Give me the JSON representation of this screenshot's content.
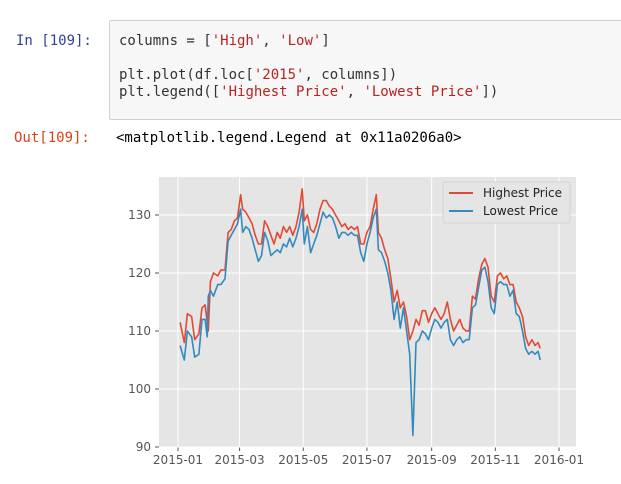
{
  "cell_in": {
    "prompt": "In [109]:",
    "lines": [
      {
        "parts": [
          {
            "t": "columns = ["
          },
          {
            "t": "'High'",
            "s": 1
          },
          {
            "t": ", "
          },
          {
            "t": "'Low'",
            "s": 1
          },
          {
            "t": "]"
          }
        ]
      },
      {
        "parts": [
          {
            "t": "plt.plot(df.loc["
          },
          {
            "t": "'2015'",
            "s": 1
          },
          {
            "t": ", columns])"
          }
        ]
      },
      {
        "parts": [
          {
            "t": "plt.legend(["
          },
          {
            "t": "'Highest Price'",
            "s": 1
          },
          {
            "t": ", "
          },
          {
            "t": "'Lowest Price'",
            "s": 1
          },
          {
            "t": "])"
          }
        ]
      }
    ]
  },
  "cell_out": {
    "prompt": "Out[109]:",
    "text": "<matplotlib.legend.Legend at 0x11a0206a0>"
  },
  "chart_data": {
    "type": "line",
    "title": "",
    "xlabel": "",
    "ylabel": "",
    "ylim": [
      90,
      136.5
    ],
    "xlim": [
      "2014-12-15",
      "2016-01-15"
    ],
    "grid": true,
    "style": "ggplot",
    "legend_position": "upper right",
    "xticks": [
      "2015-01",
      "2015-03",
      "2015-05",
      "2015-07",
      "2015-09",
      "2015-11",
      "2016-01"
    ],
    "yticks": [
      90,
      100,
      110,
      120,
      130
    ],
    "series": [
      {
        "name": "Highest Price",
        "color": "#e24a33",
        "points": [
          [
            2,
            111.5
          ],
          [
            6,
            108
          ],
          [
            9,
            113
          ],
          [
            13,
            112.5
          ],
          [
            16,
            108.5
          ],
          [
            20,
            109.5
          ],
          [
            23,
            114
          ],
          [
            26,
            114.5
          ],
          [
            29,
            110
          ],
          [
            31,
            118.5
          ],
          [
            34,
            120
          ],
          [
            38,
            119.5
          ],
          [
            41,
            120.5
          ],
          [
            45,
            120.5
          ],
          [
            48,
            127
          ],
          [
            51,
            127.5
          ],
          [
            54,
            129
          ],
          [
            57,
            129.5
          ],
          [
            60,
            133.5
          ],
          [
            62,
            131
          ],
          [
            65,
            130.5
          ],
          [
            68,
            129.5
          ],
          [
            71,
            128.5
          ],
          [
            74,
            126.5
          ],
          [
            77,
            125
          ],
          [
            80,
            125
          ],
          [
            83,
            129
          ],
          [
            86,
            128
          ],
          [
            89,
            126.5
          ],
          [
            92,
            125
          ],
          [
            95,
            127
          ],
          [
            98,
            126
          ],
          [
            101,
            128
          ],
          [
            104,
            127
          ],
          [
            107,
            128
          ],
          [
            110,
            126.5
          ],
          [
            113,
            128
          ],
          [
            116,
            130.5
          ],
          [
            119,
            134.5
          ],
          [
            121,
            129
          ],
          [
            124,
            130
          ],
          [
            127,
            127.5
          ],
          [
            130,
            127
          ],
          [
            133,
            128.5
          ],
          [
            136,
            131
          ],
          [
            139,
            132.5
          ],
          [
            142,
            132.5
          ],
          [
            145,
            131.5
          ],
          [
            148,
            131
          ],
          [
            151,
            130
          ],
          [
            154,
            129
          ],
          [
            157,
            128
          ],
          [
            160,
            128.5
          ],
          [
            163,
            127.5
          ],
          [
            166,
            128
          ],
          [
            169,
            127.5
          ],
          [
            172,
            128
          ],
          [
            175,
            125
          ],
          [
            178,
            125
          ],
          [
            181,
            127
          ],
          [
            184,
            128
          ],
          [
            187,
            131
          ],
          [
            190,
            133.5
          ],
          [
            192,
            127
          ],
          [
            195,
            126
          ],
          [
            198,
            124
          ],
          [
            201,
            122.5
          ],
          [
            204,
            119
          ],
          [
            207,
            115
          ],
          [
            210,
            117
          ],
          [
            213,
            114
          ],
          [
            216,
            115
          ],
          [
            219,
            112.5
          ],
          [
            222,
            108.5
          ],
          [
            225,
            110
          ],
          [
            228,
            112
          ],
          [
            231,
            111
          ],
          [
            234,
            113.5
          ],
          [
            237,
            113.5
          ],
          [
            240,
            111.5
          ],
          [
            243,
            113
          ],
          [
            246,
            114
          ],
          [
            249,
            113
          ],
          [
            252,
            112
          ],
          [
            255,
            113
          ],
          [
            258,
            115
          ],
          [
            261,
            112
          ],
          [
            264,
            110
          ],
          [
            267,
            111
          ],
          [
            270,
            112
          ],
          [
            273,
            110.5
          ],
          [
            276,
            110
          ],
          [
            279,
            110
          ],
          [
            282,
            116
          ],
          [
            285,
            115.5
          ],
          [
            288,
            119
          ],
          [
            291,
            121.5
          ],
          [
            294,
            122.5
          ],
          [
            297,
            121
          ],
          [
            300,
            116
          ],
          [
            303,
            115
          ],
          [
            306,
            119.5
          ],
          [
            309,
            120
          ],
          [
            312,
            119
          ],
          [
            315,
            119.5
          ],
          [
            318,
            118
          ],
          [
            321,
            118
          ],
          [
            324,
            115
          ],
          [
            327,
            114
          ],
          [
            330,
            112.5
          ],
          [
            333,
            109
          ],
          [
            336,
            107.5
          ],
          [
            339,
            108.5
          ],
          [
            342,
            107.5
          ],
          [
            345,
            108
          ],
          [
            347,
            107
          ]
        ]
      },
      {
        "name": "Lowest Price",
        "color": "#348abd",
        "points": [
          [
            2,
            107.5
          ],
          [
            6,
            105
          ],
          [
            9,
            110
          ],
          [
            13,
            109
          ],
          [
            16,
            105.5
          ],
          [
            20,
            106
          ],
          [
            23,
            112
          ],
          [
            26,
            112
          ],
          [
            28,
            109
          ],
          [
            29,
            116
          ],
          [
            31,
            117
          ],
          [
            34,
            116
          ],
          [
            38,
            118
          ],
          [
            41,
            118
          ],
          [
            45,
            119
          ],
          [
            48,
            125.5
          ],
          [
            51,
            126.5
          ],
          [
            54,
            127.5
          ],
          [
            57,
            128.5
          ],
          [
            60,
            131
          ],
          [
            62,
            127
          ],
          [
            65,
            128
          ],
          [
            68,
            127.5
          ],
          [
            71,
            126
          ],
          [
            74,
            124
          ],
          [
            77,
            122
          ],
          [
            80,
            123
          ],
          [
            83,
            127
          ],
          [
            86,
            125.5
          ],
          [
            89,
            123
          ],
          [
            92,
            123.5
          ],
          [
            95,
            124
          ],
          [
            98,
            123.5
          ],
          [
            101,
            125
          ],
          [
            104,
            124.5
          ],
          [
            107,
            126
          ],
          [
            110,
            124.5
          ],
          [
            113,
            126
          ],
          [
            116,
            128
          ],
          [
            119,
            131
          ],
          [
            121,
            125
          ],
          [
            124,
            128
          ],
          [
            127,
            123.5
          ],
          [
            130,
            125
          ],
          [
            133,
            126.5
          ],
          [
            136,
            128.5
          ],
          [
            139,
            130.5
          ],
          [
            142,
            129.5
          ],
          [
            145,
            130
          ],
          [
            148,
            129.5
          ],
          [
            151,
            128
          ],
          [
            154,
            126
          ],
          [
            157,
            127
          ],
          [
            160,
            127
          ],
          [
            163,
            126.5
          ],
          [
            166,
            127
          ],
          [
            169,
            126.5
          ],
          [
            172,
            126.5
          ],
          [
            175,
            123.5
          ],
          [
            178,
            122
          ],
          [
            181,
            125
          ],
          [
            184,
            127
          ],
          [
            187,
            129.5
          ],
          [
            190,
            131
          ],
          [
            192,
            124
          ],
          [
            195,
            123.5
          ],
          [
            198,
            122
          ],
          [
            201,
            120
          ],
          [
            204,
            117
          ],
          [
            207,
            112
          ],
          [
            210,
            115
          ],
          [
            213,
            110.5
          ],
          [
            216,
            114
          ],
          [
            219,
            110
          ],
          [
            222,
            106
          ],
          [
            225,
            92
          ],
          [
            228,
            108
          ],
          [
            231,
            108.5
          ],
          [
            234,
            110
          ],
          [
            237,
            109.5
          ],
          [
            240,
            108.5
          ],
          [
            243,
            110.5
          ],
          [
            246,
            112
          ],
          [
            249,
            111.5
          ],
          [
            252,
            110.5
          ],
          [
            255,
            111.5
          ],
          [
            258,
            112
          ],
          [
            261,
            108.5
          ],
          [
            264,
            107.5
          ],
          [
            267,
            108.5
          ],
          [
            270,
            109
          ],
          [
            273,
            108
          ],
          [
            276,
            108.5
          ],
          [
            279,
            108.5
          ],
          [
            282,
            114
          ],
          [
            285,
            114.5
          ],
          [
            288,
            117.5
          ],
          [
            291,
            120.5
          ],
          [
            294,
            121
          ],
          [
            297,
            118.5
          ],
          [
            300,
            114
          ],
          [
            303,
            113
          ],
          [
            306,
            118
          ],
          [
            309,
            118.5
          ],
          [
            312,
            118
          ],
          [
            315,
            118
          ],
          [
            318,
            116
          ],
          [
            321,
            117
          ],
          [
            324,
            113
          ],
          [
            327,
            112.5
          ],
          [
            330,
            110
          ],
          [
            333,
            107
          ],
          [
            336,
            106
          ],
          [
            339,
            106.5
          ],
          [
            342,
            106
          ],
          [
            345,
            106.5
          ],
          [
            347,
            105
          ]
        ]
      }
    ]
  }
}
